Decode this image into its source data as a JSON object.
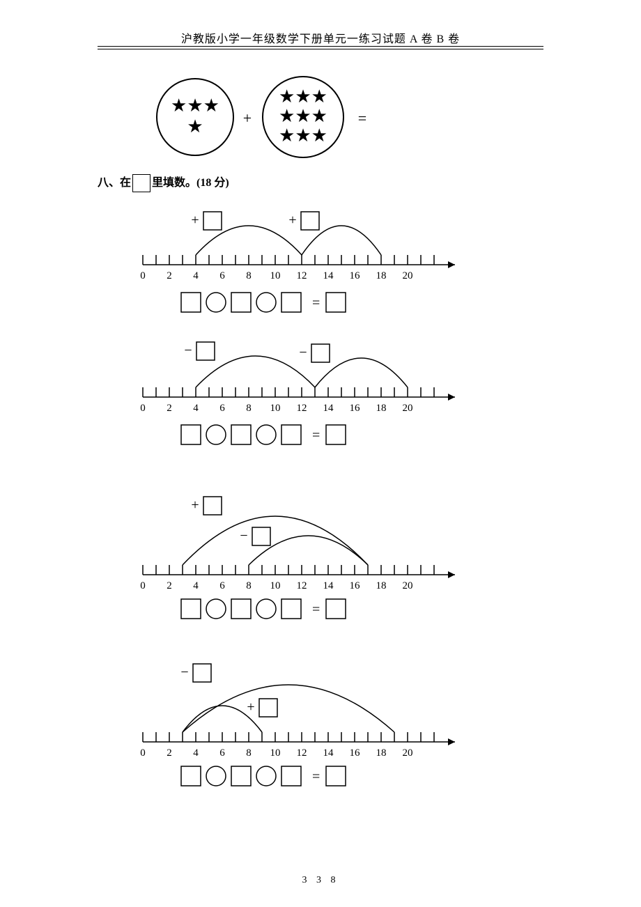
{
  "header": "沪教版小学一年级数学下册单元一练习试题 A 卷 B 卷",
  "page_number": "3 3 8",
  "q7": {
    "circle1_stars_row1": "★★★",
    "circle1_stars_row2": "★",
    "circle2_stars_row1": "★★★",
    "circle2_stars_row2": "★★★",
    "circle2_stars_row3": "★★★",
    "plus": "+",
    "equals": "="
  },
  "q8": {
    "title_prefix": "八、在",
    "title_suffix": "里填数。(18 分)",
    "numberline_ticks": [
      "0",
      "2",
      "4",
      "6",
      "8",
      "10",
      "12",
      "14",
      "16",
      "18",
      "20"
    ],
    "op_plus": "+",
    "op_minus": "−",
    "equation_eq": "=",
    "line1": {
      "arc1_start": 4,
      "arc1_end": 12,
      "arc1_op": "+",
      "arc2_start": 12,
      "arc2_end": 18,
      "arc2_op": "+"
    },
    "line2": {
      "arc1_start": 4,
      "arc1_end": 13,
      "arc1_op": "−",
      "arc2_start": 13,
      "arc2_end": 20,
      "arc2_op": "−"
    },
    "line3": {
      "arc1_start": 3,
      "arc1_end": 17,
      "arc1_op": "+",
      "arc2_start": 8,
      "arc2_end": 17,
      "arc2_op": "−"
    },
    "line4": {
      "arc1_start": 3,
      "arc1_end": 19,
      "arc1_op": "−",
      "arc2_start": 3,
      "arc2_end": 9,
      "arc2_op": "+"
    }
  },
  "style": {
    "stroke": "#000000",
    "font": "SimSun",
    "tick_fontsize": 14,
    "star_color": "#000000"
  }
}
